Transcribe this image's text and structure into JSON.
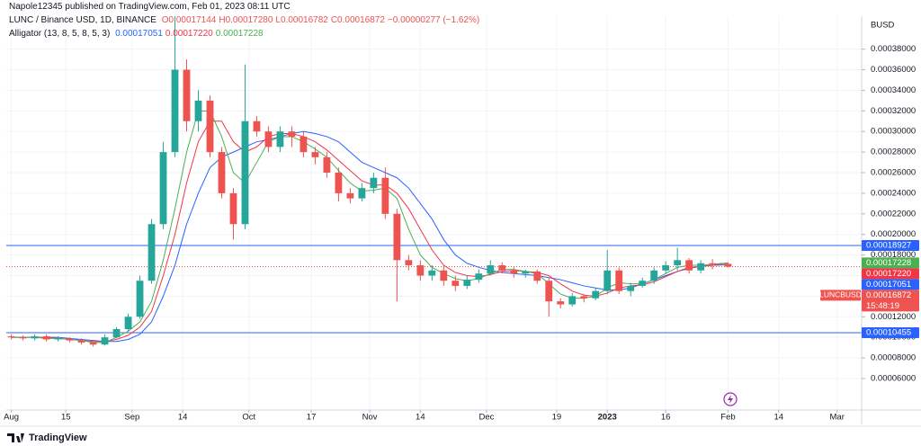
{
  "chart_data": {
    "type": "candlestick",
    "author_line": "Napole12345 published on TradingView.com, Feb 01, 2023 08:11 UTC",
    "symbol": "LUNC / Binance USD, 1D, BINANCE",
    "ohlc_labels": [
      "O0.00017144",
      "H0.00017280",
      "L0.00016782",
      "C0.00016872",
      "−0.00000277 (−1.62%)"
    ],
    "indicator": "Alligator (13, 8, 5, 8, 5, 3)",
    "y_axis_title": "BUSD",
    "footer": "TradingView",
    "color_up": "#26a69a",
    "color_down": "#ef5350",
    "grid": true,
    "x": [
      0,
      3,
      6,
      9,
      12,
      15,
      18,
      21,
      24,
      27,
      30,
      33,
      36,
      39,
      42,
      45,
      48,
      51,
      54,
      57,
      60,
      63,
      66,
      69,
      72,
      75,
      78,
      81,
      84,
      87,
      90,
      93,
      96,
      99,
      102,
      105,
      108,
      111,
      114,
      117,
      120,
      123,
      126,
      129,
      132,
      135,
      138,
      141,
      144,
      147,
      150,
      153,
      156,
      159,
      162,
      165,
      168,
      171,
      174,
      177,
      180,
      184
    ],
    "open": [
      0.000101,
      0.0001,
      9.9e-05,
      0.000101,
      9.8e-05,
      9.9e-05,
      9.7e-05,
      9.5e-05,
      9.3e-05,
      0.0001,
      0.000108,
      0.00012,
      0.000155,
      0.00021,
      0.00028,
      0.00036,
      0.00031,
      0.00033,
      0.00028,
      0.00024,
      0.00021,
      0.00031,
      0.0003,
      0.000285,
      0.0003,
      0.000295,
      0.00028,
      0.000275,
      0.00026,
      0.00024,
      0.000235,
      0.000245,
      0.000255,
      0.00022,
      0.000175,
      0.00017,
      0.00016,
      0.000165,
      0.000155,
      0.00015,
      0.000156,
      0.000162,
      0.00017,
      0.000165,
      0.000162,
      0.000164,
      0.000155,
      0.000135,
      0.000132,
      0.00014,
      0.000138,
      0.000145,
      0.000165,
      0.000145,
      0.00015,
      0.000155,
      0.000165,
      0.00017,
      0.000175,
      0.000165,
      0.000172,
      0.00017144
    ],
    "high": [
      0.000103,
      0.000102,
      0.000103,
      0.000103,
      0.000101,
      0.0001,
      9.9e-05,
      9.7e-05,
      0.000103,
      0.00011,
      0.000123,
      0.00016,
      0.000215,
      0.00029,
      0.00044,
      0.00037,
      0.00034,
      0.000335,
      0.000285,
      0.000245,
      0.000365,
      0.000315,
      0.000305,
      0.000305,
      0.000305,
      0.0003,
      0.000285,
      0.00028,
      0.000265,
      0.000245,
      0.00025,
      0.00026,
      0.000265,
      0.000225,
      0.00018,
      0.000175,
      0.00017,
      0.00017,
      0.00016,
      0.00016,
      0.000166,
      0.000175,
      0.000173,
      0.000168,
      0.000166,
      0.000166,
      0.000158,
      0.000138,
      0.000143,
      0.000142,
      0.000148,
      0.000185,
      0.000168,
      0.000153,
      0.000158,
      0.000168,
      0.000174,
      0.000187,
      0.000177,
      0.000175,
      0.000176,
      0.0001728
    ],
    "low": [
      9.8e-05,
      9.7e-05,
      9.7e-05,
      9.6e-05,
      9.6e-05,
      9.5e-05,
      9.3e-05,
      9.1e-05,
      9.2e-05,
      9.9e-05,
      0.000106,
      0.000118,
      0.000152,
      0.000205,
      0.000275,
      0.0003,
      0.0003,
      0.000275,
      0.000235,
      0.000195,
      0.000205,
      0.000295,
      0.00028,
      0.00028,
      0.000285,
      0.000275,
      0.000268,
      0.000255,
      0.000232,
      0.00023,
      0.000232,
      0.00024,
      0.000215,
      0.000135,
      0.000165,
      0.000155,
      0.000155,
      0.00015,
      0.000145,
      0.000147,
      0.000153,
      0.00016,
      0.000162,
      0.000158,
      0.000158,
      0.000152,
      0.00012,
      0.000128,
      0.00013,
      0.000134,
      0.000136,
      0.000142,
      0.000142,
      0.00014,
      0.000148,
      0.000152,
      0.000162,
      0.000165,
      0.000162,
      0.000162,
      0.000166,
      0.00016782
    ],
    "close": [
      0.0001,
      9.9e-05,
      0.000101,
      9.8e-05,
      9.9e-05,
      9.7e-05,
      9.5e-05,
      9.3e-05,
      0.0001,
      0.000108,
      0.00012,
      0.000155,
      0.00021,
      0.00028,
      0.00036,
      0.00031,
      0.00033,
      0.00028,
      0.00024,
      0.00021,
      0.00031,
      0.0003,
      0.000285,
      0.0003,
      0.000295,
      0.00028,
      0.000275,
      0.00026,
      0.00024,
      0.000235,
      0.000245,
      0.000255,
      0.00022,
      0.000175,
      0.00017,
      0.00016,
      0.000165,
      0.000155,
      0.00015,
      0.000156,
      0.000162,
      0.00017,
      0.000165,
      0.000162,
      0.000164,
      0.000155,
      0.000135,
      0.000132,
      0.00014,
      0.000138,
      0.000145,
      0.000165,
      0.000145,
      0.00015,
      0.000155,
      0.000165,
      0.00017,
      0.000175,
      0.000165,
      0.000172,
      0.000171,
      0.00016872
    ],
    "series": [
      {
        "color": "#2962ff",
        "label": "0.00017051",
        "values": [
          0.0001,
          0.0001,
          0.0001,
          0.0001,
          0.0001,
          9.9e-05,
          9.8e-05,
          9.7e-05,
          9.6e-05,
          9.6e-05,
          9.8e-05,
          0.000103,
          0.000115,
          0.00014,
          0.00017,
          0.00021,
          0.00024,
          0.000265,
          0.000275,
          0.00028,
          0.000285,
          0.00029,
          0.000292,
          0.000295,
          0.000298,
          0.0003,
          0.000298,
          0.000295,
          0.00029,
          0.00028,
          0.00027,
          0.000265,
          0.00026,
          0.000255,
          0.000245,
          0.00023,
          0.000215,
          0.000195,
          0.00018,
          0.000172,
          0.000168,
          0.000165,
          0.000163,
          0.000162,
          0.000161,
          0.00016,
          0.000158,
          0.000156,
          0.000153,
          0.00015,
          0.000148,
          0.000146,
          0.000146,
          0.000148,
          0.000152,
          0.000156,
          0.00016,
          0.000164,
          0.000167,
          0.000169,
          0.00017,
          0.00017051
        ]
      },
      {
        "color": "#f23645",
        "label": "0.00017220",
        "values": [
          0.0001,
          0.0001,
          0.0001,
          0.0001,
          9.9e-05,
          9.8e-05,
          9.7e-05,
          9.6e-05,
          9.6e-05,
          9.8e-05,
          0.000102,
          0.00011,
          0.000125,
          0.00016,
          0.0002,
          0.00025,
          0.00029,
          0.00031,
          0.00031,
          0.00029,
          0.00028,
          0.000285,
          0.000295,
          0.000298,
          0.000298,
          0.000295,
          0.00029,
          0.000282,
          0.000272,
          0.000262,
          0.000252,
          0.000248,
          0.000248,
          0.00024,
          0.000225,
          0.000205,
          0.000185,
          0.00017,
          0.000163,
          0.00016,
          0.000159,
          0.000161,
          0.000164,
          0.000165,
          0.000164,
          0.000163,
          0.00016,
          0.000152,
          0.000145,
          0.000141,
          0.00014,
          0.000143,
          0.000148,
          0.00015,
          0.000151,
          0.000154,
          0.000159,
          0.000164,
          0.000168,
          0.000169,
          0.00017,
          0.0001722
        ]
      },
      {
        "color": "#4caf50",
        "label": "0.00017228",
        "values": [
          0.0001,
          0.0001,
          0.0001,
          9.9e-05,
          9.9e-05,
          9.8e-05,
          9.7e-05,
          9.5e-05,
          9.5e-05,
          0.0001,
          0.000106,
          0.000115,
          0.000135,
          0.000175,
          0.000225,
          0.00028,
          0.00032,
          0.00032,
          0.000295,
          0.00026,
          0.00025,
          0.00027,
          0.00029,
          0.000295,
          0.000295,
          0.00029,
          0.000283,
          0.000275,
          0.000262,
          0.00025,
          0.000242,
          0.000243,
          0.000245,
          0.000235,
          0.000205,
          0.00018,
          0.000168,
          0.000162,
          0.000157,
          0.000155,
          0.000157,
          0.000162,
          0.000166,
          0.000166,
          0.000164,
          0.000162,
          0.000152,
          0.000142,
          0.000138,
          0.000138,
          0.00014,
          0.000148,
          0.000153,
          0.000152,
          0.000152,
          0.000156,
          0.000162,
          0.000168,
          0.00017,
          0.00017,
          0.000171,
          0.00017228
        ]
      }
    ],
    "hlines": [
      {
        "value": 0.00018927,
        "label": "0.00018927",
        "color": "#2962ff"
      },
      {
        "value": 0.00010455,
        "label": "0.00010455",
        "color": "#2962ff"
      }
    ],
    "price_line": {
      "value": 0.00016872,
      "label": "0.00016872",
      "countdown": "15:48:19",
      "symbol": "LUNCBUSD",
      "color": "#ef5350"
    },
    "xlim": [
      -1.3,
      218.3
    ],
    "xticks": [
      {
        "value": 0,
        "label": "Aug"
      },
      {
        "value": 14,
        "label": "15"
      },
      {
        "value": 31,
        "label": "Sep"
      },
      {
        "value": 44,
        "label": "14"
      },
      {
        "value": 61,
        "label": "Oct"
      },
      {
        "value": 77,
        "label": "17"
      },
      {
        "value": 92,
        "label": "Nov"
      },
      {
        "value": 105,
        "label": "14"
      },
      {
        "value": 122,
        "label": "Dec"
      },
      {
        "value": 140,
        "label": "19"
      },
      {
        "value": 153,
        "label": "2023"
      },
      {
        "value": 168,
        "label": "16"
      },
      {
        "value": 184,
        "label": "Feb"
      },
      {
        "value": 197,
        "label": "14"
      },
      {
        "value": 212,
        "label": "Mar"
      }
    ],
    "ylim": [
      2.94e-05,
      0.000412
    ],
    "yticks": [
      {
        "value": 6e-05,
        "label": "0.00006000"
      },
      {
        "value": 8e-05,
        "label": "0.00008000"
      },
      {
        "value": 0.0001,
        "label": "0.00010000"
      },
      {
        "value": 0.00012,
        "label": "0.00012000"
      },
      {
        "value": 0.00014,
        "label": "0.00014000"
      },
      {
        "value": 0.00016,
        "label": "0.00016000"
      },
      {
        "value": 0.00018,
        "label": "0.00018000"
      },
      {
        "value": 0.0002,
        "label": "0.00020000"
      },
      {
        "value": 0.00022,
        "label": "0.00022000"
      },
      {
        "value": 0.00024,
        "label": "0.00024000"
      },
      {
        "value": 0.00026,
        "label": "0.00026000"
      },
      {
        "value": 0.00028,
        "label": "0.00028000"
      },
      {
        "value": 0.0003,
        "label": "0.00030000"
      },
      {
        "value": 0.00032,
        "label": "0.00032000"
      },
      {
        "value": 0.00034,
        "label": "0.00034000"
      },
      {
        "value": 0.00036,
        "label": "0.00036000"
      },
      {
        "value": 0.00038,
        "label": "0.00038000"
      }
    ]
  }
}
